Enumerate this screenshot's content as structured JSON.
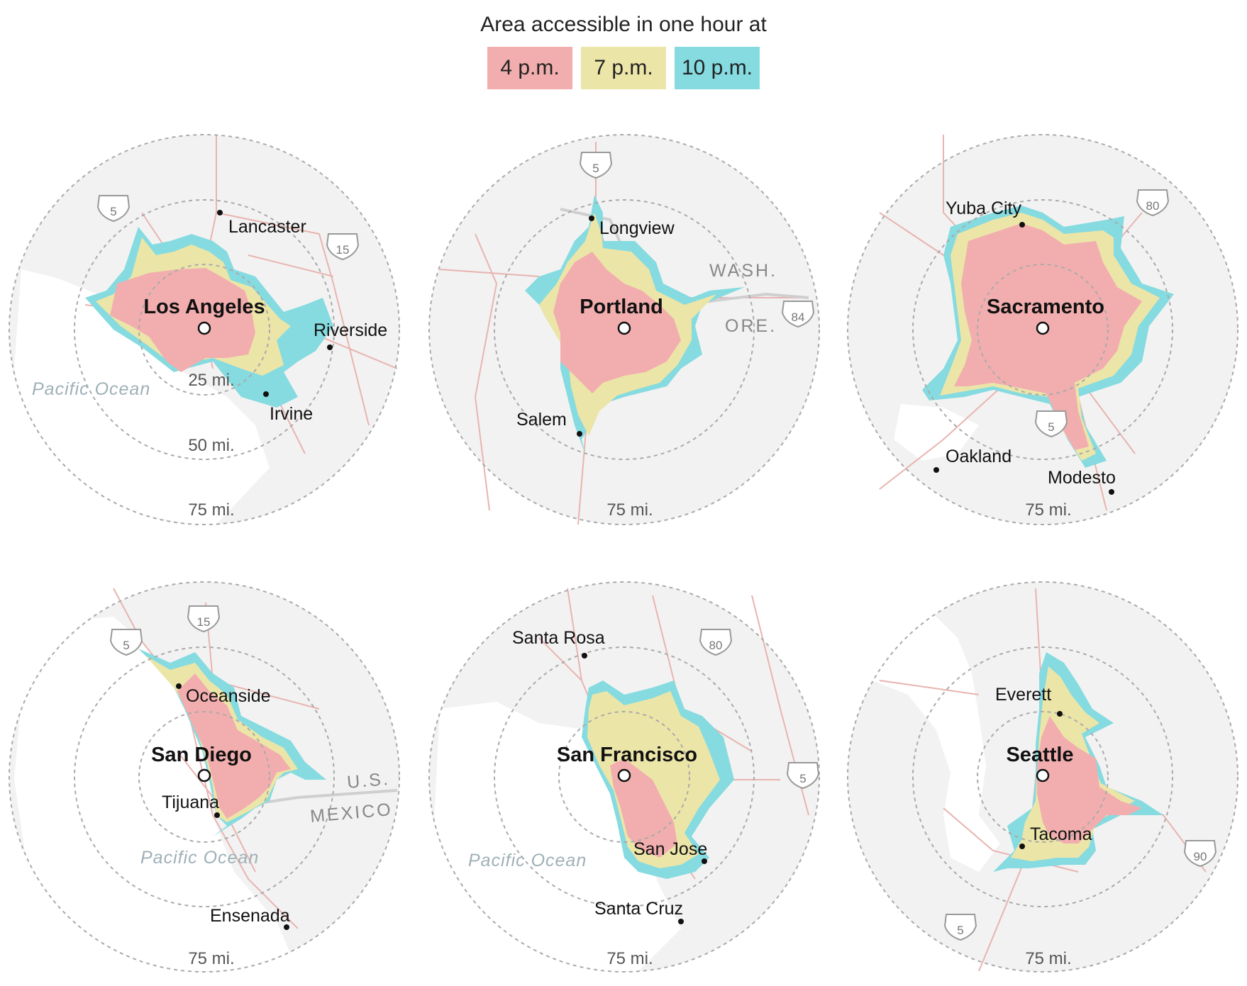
{
  "legend": {
    "title": "Area accessible in one hour at",
    "items": [
      {
        "label": "4 p.m.",
        "color": "#f2aeae"
      },
      {
        "label": "7 p.m.",
        "color": "#ece5a8"
      },
      {
        "label": "10 p.m.",
        "color": "#85dbe0"
      }
    ]
  },
  "maps": [
    {
      "name": "Los Angeles",
      "ring_labels": [
        "25 mi.",
        "50 mi.",
        "75 mi."
      ],
      "places": [
        "Lancaster",
        "Riverside",
        "Irvine"
      ],
      "water": [
        "Pacific Ocean"
      ],
      "regions": [],
      "highways": [
        "5",
        "15"
      ]
    },
    {
      "name": "Portland",
      "ring_labels": [
        "75 mi."
      ],
      "places": [
        "Longview",
        "Salem"
      ],
      "water": [],
      "regions": [
        "WASH.",
        "ORE."
      ],
      "highways": [
        "5",
        "84"
      ]
    },
    {
      "name": "Sacramento",
      "ring_labels": [
        "75 mi."
      ],
      "places": [
        "Yuba City",
        "Oakland",
        "Modesto"
      ],
      "water": [],
      "regions": [],
      "highways": [
        "80",
        "5"
      ]
    },
    {
      "name": "San Diego",
      "ring_labels": [
        "75 mi."
      ],
      "places": [
        "Oceanside",
        "Tijuana",
        "Ensenada"
      ],
      "water": [
        "Pacific Ocean"
      ],
      "regions": [
        "U.S.",
        "MEXICO"
      ],
      "highways": [
        "5",
        "15"
      ]
    },
    {
      "name": "San Francisco",
      "ring_labels": [
        "75 mi."
      ],
      "places": [
        "Santa Rosa",
        "San Jose",
        "Santa Cruz"
      ],
      "water": [
        "Pacific Ocean"
      ],
      "regions": [],
      "highways": [
        "80",
        "5"
      ]
    },
    {
      "name": "Seattle",
      "ring_labels": [
        "75 mi."
      ],
      "places": [
        "Everett",
        "Tacoma"
      ],
      "water": [],
      "regions": [],
      "highways": [
        "5",
        "90"
      ]
    }
  ]
}
